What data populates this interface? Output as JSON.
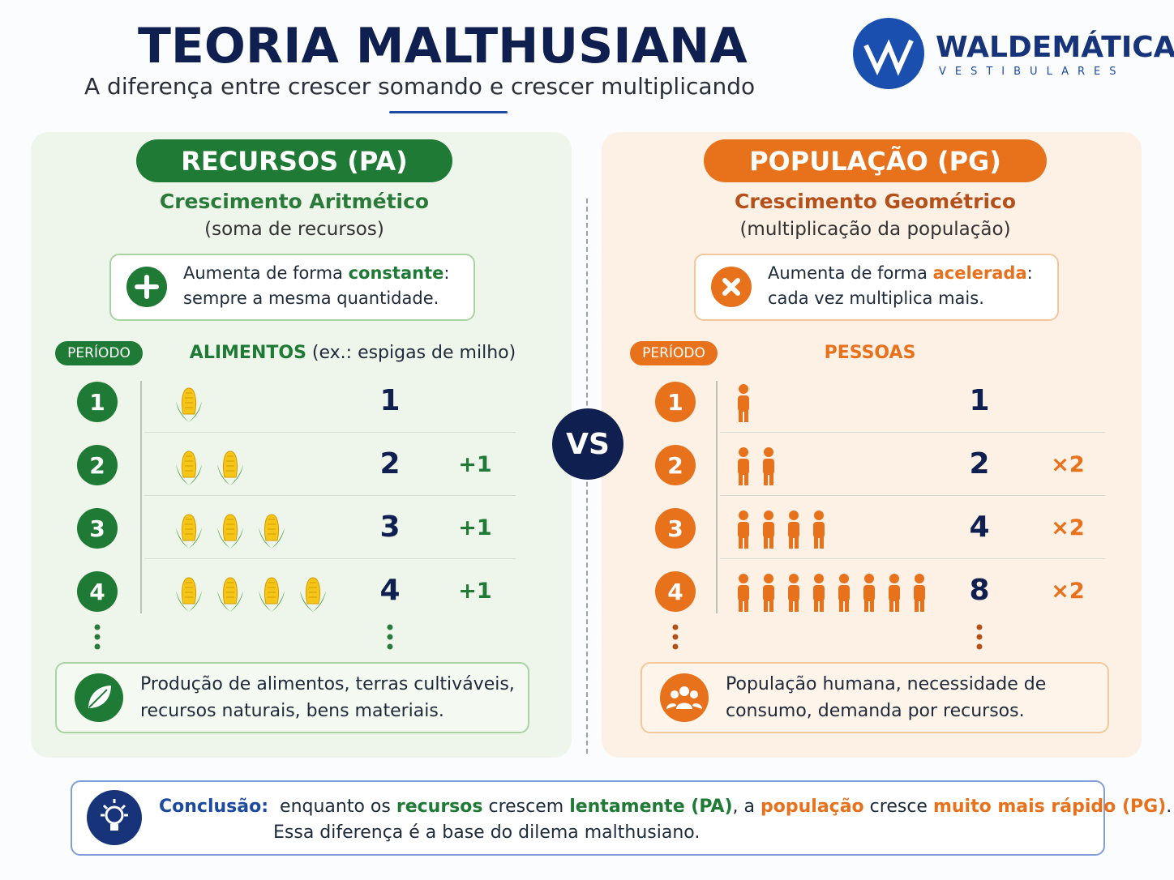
{
  "header": {
    "title": "TEORIA MALTHUSIANA",
    "subtitle": "A diferença entre crescer somando e crescer multiplicando"
  },
  "logo": {
    "name": "WALDEMÁTICA",
    "tagline": "VESTIBULARES"
  },
  "vs": "VS",
  "left": {
    "badge": "RECURSOS (PA)",
    "heading": "Crescimento Aritmético",
    "subheading": "(soma de recursos)",
    "note": {
      "line1": [
        "Aumenta de forma ",
        "constante",
        ":"
      ],
      "line2": "sempre a mesma quantidade."
    },
    "period_label": "PERÍODO",
    "column_header": [
      "ALIMENTOS",
      " (ex.: espigas de milho)"
    ],
    "rows": [
      {
        "period": "1",
        "value": 1
      },
      {
        "period": "2",
        "value": 2,
        "change": "+1"
      },
      {
        "period": "3",
        "value": 3,
        "change": "+1"
      },
      {
        "period": "4",
        "value": 4,
        "change": "+1"
      }
    ],
    "footer": [
      "Produção de alimentos, terras cultiváveis,",
      "recursos naturais, bens materiais."
    ]
  },
  "right": {
    "badge": "POPULAÇÃO (PG)",
    "heading": "Crescimento Geométrico",
    "subheading": "(multiplicação da população)",
    "note": {
      "line1": [
        "Aumenta de forma ",
        "acelerada",
        ":"
      ],
      "line2": "cada vez multiplica mais."
    },
    "period_label": "PERÍODO",
    "column_header": [
      "PESSOAS"
    ],
    "rows": [
      {
        "period": "1",
        "value": 1
      },
      {
        "period": "2",
        "value": 2,
        "change": "×2"
      },
      {
        "period": "3",
        "value": 4,
        "change": "×2"
      },
      {
        "period": "4",
        "value": 8,
        "change": "×2"
      }
    ],
    "footer": [
      "População humana, necessidade de",
      "consumo, demanda por recursos."
    ]
  },
  "conclusion": {
    "label": "Conclusão:",
    "line1": [
      "enquanto os ",
      "recursos",
      " crescem ",
      "lentamente (PA)",
      ", a ",
      "população",
      " cresce ",
      "muito mais rápido (PG)",
      "."
    ],
    "line2": "Essa diferença é a base do dilema malthusiano."
  }
}
